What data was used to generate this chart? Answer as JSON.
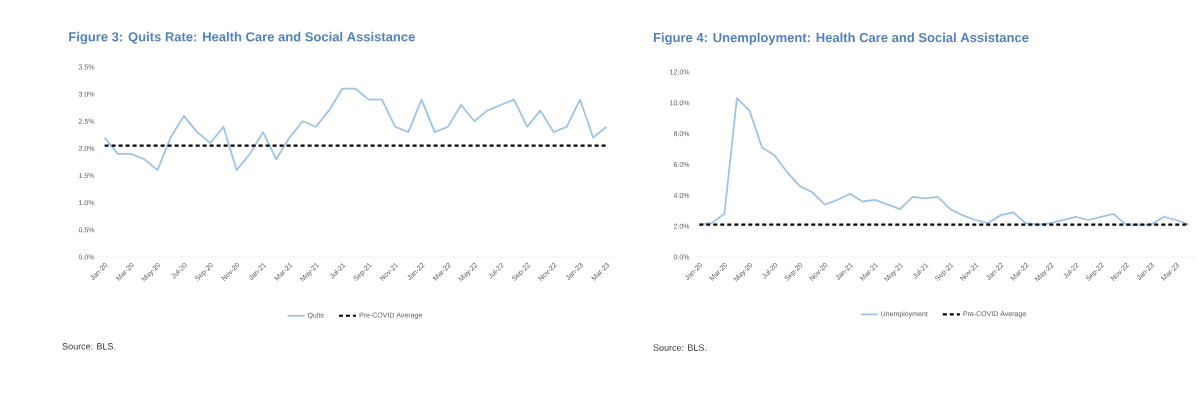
{
  "chart_data": [
    {
      "type": "line",
      "title": "Figure 3: Quits Rate: Health Care and Social Assistance",
      "categories": [
        "Jan-20",
        null,
        "Mar-20",
        null,
        "May-20",
        null,
        "Jul-20",
        null,
        "Sep-20",
        null,
        "Nov-20",
        null,
        "Jan-21",
        null,
        "Mar-21",
        null,
        "May-21",
        null,
        "Jul-21",
        null,
        "Sep-21",
        null,
        "Nov-21",
        null,
        "Jan-22",
        null,
        "Mar-22",
        null,
        "May-22",
        null,
        "Jul-22",
        null,
        "Sep-22",
        null,
        "Nov-22",
        null,
        "Jan-23",
        null,
        "Mar-23"
      ],
      "series": [
        {
          "name": "Quits",
          "color": "#9dc3e6",
          "values": [
            2.2,
            1.9,
            1.9,
            1.8,
            1.6,
            2.2,
            2.6,
            2.3,
            2.1,
            2.4,
            1.6,
            1.9,
            2.3,
            1.8,
            2.2,
            2.5,
            2.4,
            2.7,
            3.1,
            3.1,
            2.9,
            2.9,
            2.4,
            2.3,
            2.9,
            2.3,
            2.4,
            2.8,
            2.5,
            2.7,
            2.8,
            2.9,
            2.4,
            2.7,
            2.3,
            2.4,
            2.9,
            2.2,
            2.4
          ]
        }
      ],
      "ref_lines": [
        {
          "axis": "y",
          "value": 2.05,
          "label": "Pre-COVID Average",
          "color": "#000000",
          "line_style": "dashed"
        }
      ],
      "ylim": [
        0,
        3.5
      ],
      "yticks": [
        {
          "value": 0,
          "label": "0.0%"
        },
        {
          "value": 0.5,
          "label": "0.5%"
        },
        {
          "value": 1,
          "label": "1.0%"
        },
        {
          "value": 1.5,
          "label": "1.5%"
        },
        {
          "value": 2,
          "label": "2.0%"
        },
        {
          "value": 2.5,
          "label": "2.5%"
        },
        {
          "value": 3,
          "label": "3.0%"
        },
        {
          "value": 3.5,
          "label": "3.5%"
        }
      ],
      "marker": "none",
      "legend": "bottom",
      "annotations": [
        "Source: BLS."
      ]
    },
    {
      "type": "line",
      "title": "Figure 4: Unemployment: Health Care and Social Assistance",
      "categories": [
        "Jan-20",
        null,
        "Mar-20",
        null,
        "May-20",
        null,
        "Jul-20",
        null,
        "Sep-20",
        null,
        "Nov-20",
        null,
        "Jan-21",
        null,
        "Mar-21",
        null,
        "May-21",
        null,
        "Jul-21",
        null,
        "Sep-21",
        null,
        "Nov-21",
        null,
        "Jan-22",
        null,
        "Mar-22",
        null,
        "May-22",
        null,
        "Jul-22",
        null,
        "Sep-22",
        null,
        "Nov-22",
        null,
        "Jan-23",
        null,
        "Mar-23",
        null
      ],
      "series": [
        {
          "name": "Unemployment",
          "color": "#9dc3e6",
          "values": [
            2.1,
            2.2,
            2.8,
            10.3,
            9.5,
            7.1,
            6.6,
            5.5,
            4.6,
            4.2,
            3.4,
            3.7,
            4.1,
            3.6,
            3.7,
            3.4,
            3.1,
            3.9,
            3.8,
            3.9,
            3.1,
            2.7,
            2.4,
            2.2,
            2.7,
            2.9,
            2.2,
            2.1,
            2.2,
            2.4,
            2.6,
            2.4,
            2.6,
            2.8,
            2.1,
            2.1,
            2.1,
            2.6,
            2.4,
            2.1
          ]
        }
      ],
      "ref_lines": [
        {
          "axis": "y",
          "value": 2.1,
          "label": "Pre-COVID Average",
          "color": "#000000",
          "line_style": "dashed"
        }
      ],
      "ylim": [
        0,
        12
      ],
      "yticks": [
        {
          "value": 0,
          "label": "0.0%"
        },
        {
          "value": 2,
          "label": "2.0%"
        },
        {
          "value": 4,
          "label": "4.0%"
        },
        {
          "value": 6,
          "label": "6.0%"
        },
        {
          "value": 8,
          "label": "8.0%"
        },
        {
          "value": 10,
          "label": "10.0%"
        },
        {
          "value": 12,
          "label": "12.0%"
        }
      ],
      "marker": "none",
      "legend": "bottom",
      "annotations": [
        "Source: BLS."
      ]
    }
  ]
}
